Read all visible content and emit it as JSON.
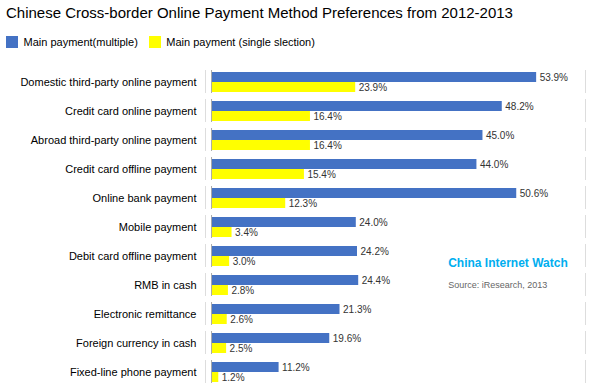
{
  "chart_data": {
    "type": "bar",
    "orientation": "horizontal",
    "title": "Chinese Cross-border Online Payment Method Preferences from 2012-2013",
    "categories": [
      "Domestic third-party online payment",
      "Credit card online payment",
      "Abroad third-party online payment",
      "Credit card offline payment",
      "Online bank payment",
      "Mobile payment",
      "Debit card offline payment",
      "RMB in cash",
      "Electronic remittance",
      "Foreign currency in cash",
      "Fixed-line phone payment"
    ],
    "series": [
      {
        "name": "Main payment(multiple)",
        "color": "#4472C4",
        "values": [
          53.9,
          48.2,
          45.0,
          44.0,
          50.6,
          24.0,
          24.2,
          24.4,
          21.3,
          19.6,
          11.2
        ],
        "value_labels": [
          "53.9%",
          "48.2%",
          "45.0%",
          "44.0%",
          "50.6%",
          "24.0%",
          "24.2%",
          "24.4%",
          "21.3%",
          "19.6%",
          "11.2%"
        ]
      },
      {
        "name": "Main payment (single slection)",
        "color": "#FFFF00",
        "values": [
          23.9,
          16.4,
          16.4,
          15.4,
          12.3,
          3.4,
          3.0,
          2.8,
          2.6,
          2.5,
          1.2
        ],
        "value_labels": [
          "23.9%",
          "16.4%",
          "16.4%",
          "15.4%",
          "12.3%",
          "3.4%",
          "3.0%",
          "2.8%",
          "2.6%",
          "2.5%",
          "1.2%"
        ]
      }
    ],
    "xlim": [
      -1,
      62
    ],
    "tick_labels": "y",
    "grid": false,
    "legend": "upper left",
    "data_labels": true,
    "annotations": [
      {
        "text": "China Internet Watch",
        "color": "#00AEEF"
      },
      {
        "text": "Source: iResearch, 2013",
        "color": "#666666"
      }
    ]
  }
}
